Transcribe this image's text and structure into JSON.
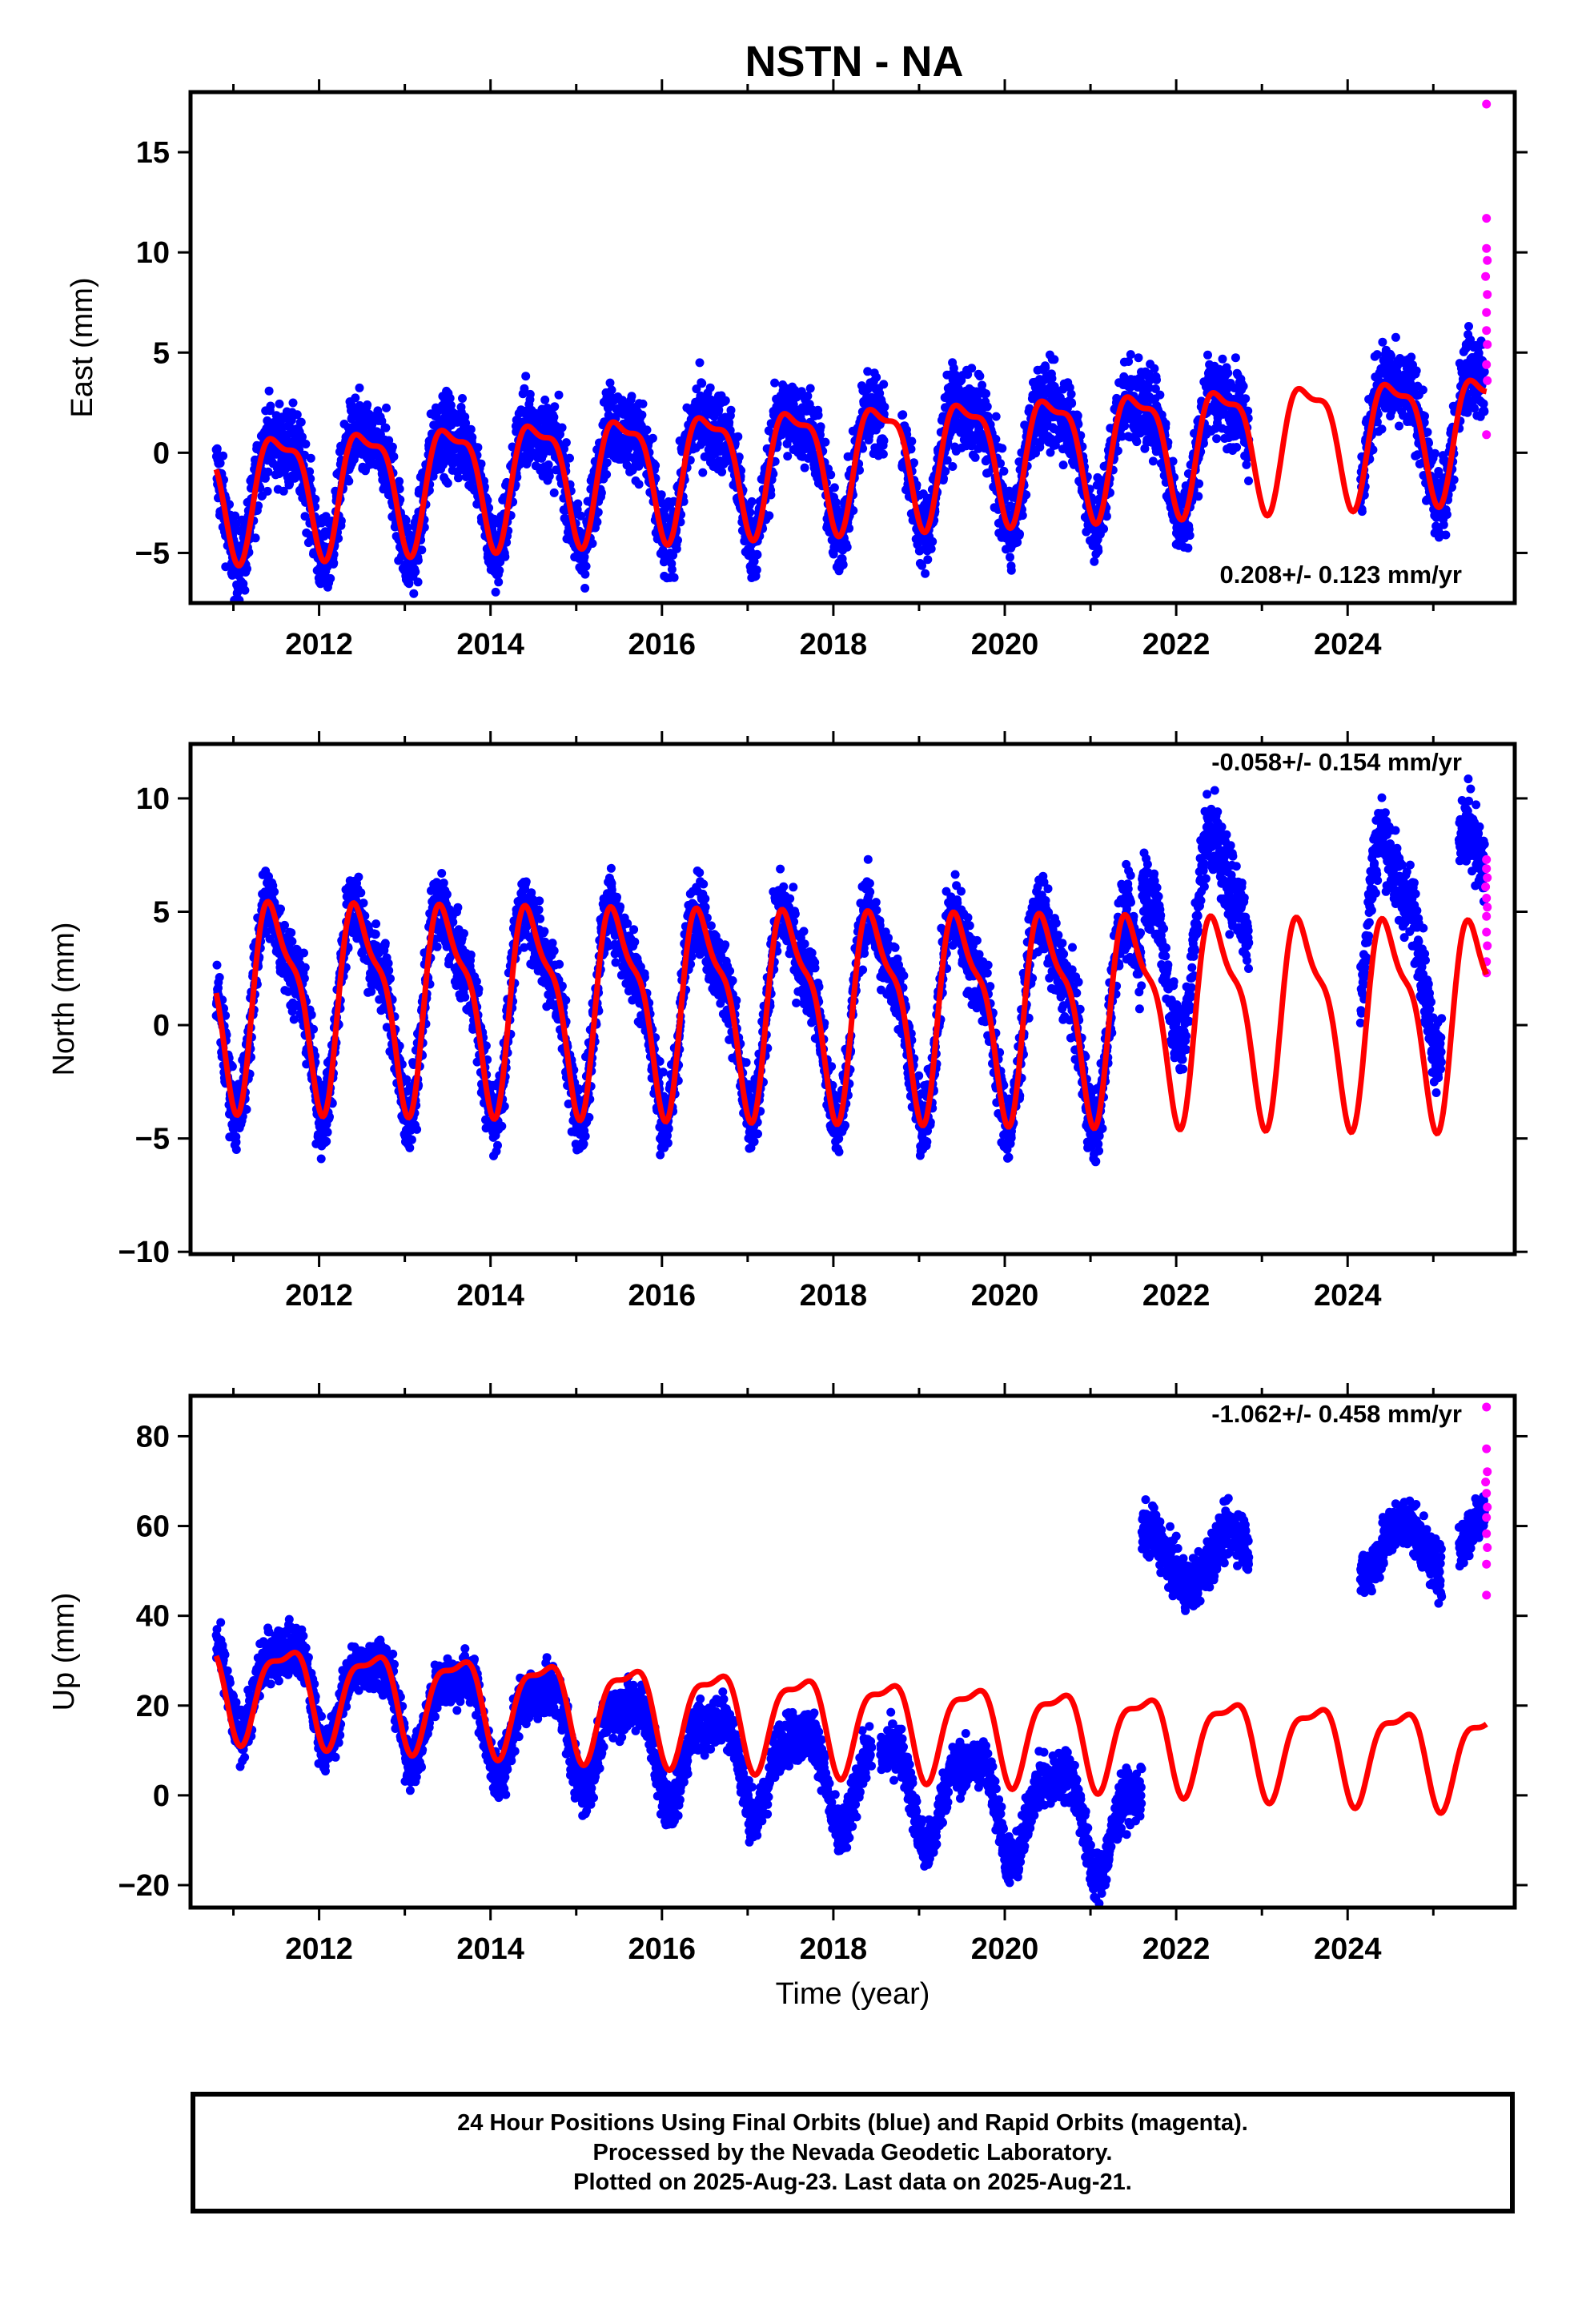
{
  "chart_data": {
    "title": "NSTN - NA",
    "type": "scatter",
    "xlabel": "Time (year)",
    "xlim": [
      2010.5,
      2025.95
    ],
    "x_ticks": [
      "2012",
      "2014",
      "2016",
      "2018",
      "2020",
      "2022",
      "2024"
    ],
    "grid": false,
    "colors": {
      "final": "#0000ff",
      "rapid": "#ff00ff",
      "model": "#ff0000"
    },
    "panels": [
      {
        "name": "east",
        "ylabel": "East (mm)",
        "ylim": [
          -7.5,
          18
        ],
        "y_ticks": [
          -5,
          0,
          5,
          10,
          15
        ],
        "y_tick_labels": [
          "−5",
          "0",
          "5",
          "10",
          "15"
        ],
        "rate_label": "0.208+/- 0.123 mm/yr",
        "model": {
          "offset": -0.3,
          "trend": 0.208,
          "amp": 2.9,
          "phase_peak": 0.55,
          "steps": [
            {
              "t": 2022.9,
              "offset": 0.0
            },
            {
              "t": 2024.35,
              "offset": 0.0
            }
          ]
        },
        "final_segments": [
          [
            2010.8,
            2018.6
          ],
          [
            2018.8,
            2022.85
          ],
          [
            2024.15,
            2025.25
          ],
          [
            2025.3,
            2025.6
          ]
        ],
        "final_offsets": [
          0,
          0,
          0.5,
          1.5
        ],
        "noise": 1.4,
        "rapid_points": [
          [
            2025.62,
            17.4
          ],
          [
            2025.62,
            11.7
          ],
          [
            2025.62,
            10.2
          ],
          [
            2025.63,
            9.6
          ],
          [
            2025.61,
            8.8
          ],
          [
            2025.63,
            7.9
          ],
          [
            2025.62,
            7.0
          ],
          [
            2025.62,
            6.1
          ],
          [
            2025.63,
            5.4
          ],
          [
            2025.62,
            4.4
          ],
          [
            2025.63,
            3.6
          ],
          [
            2025.62,
            0.9
          ]
        ]
      },
      {
        "name": "north",
        "ylabel": "North (mm)",
        "ylim": [
          -10.1,
          12.4
        ],
        "y_ticks": [
          -10,
          -5,
          0,
          5,
          10
        ],
        "y_tick_labels": [
          "−10",
          "−5",
          "0",
          "5",
          "10"
        ],
        "rate_label": "-0.058+/- 0.154 mm/yr",
        "model": {
          "offset": 0.9,
          "trend": -0.058,
          "amp": 4.1,
          "phase_peak": 0.5,
          "steps": []
        },
        "final_segments": [
          [
            2010.8,
            2021.6
          ],
          [
            2021.6,
            2022.85
          ],
          [
            2024.15,
            2025.1
          ],
          [
            2025.3,
            2025.6
          ]
        ],
        "final_offsets": [
          0,
          4.5,
          4.5,
          5.5
        ],
        "noise": 1.2,
        "rapid_points": [
          [
            2025.62,
            7.3
          ],
          [
            2025.62,
            6.9
          ],
          [
            2025.63,
            6.5
          ],
          [
            2025.61,
            6.1
          ],
          [
            2025.62,
            5.6
          ],
          [
            2025.63,
            5.2
          ],
          [
            2025.62,
            4.8
          ],
          [
            2025.62,
            4.1
          ],
          [
            2025.63,
            3.5
          ],
          [
            2025.62,
            2.8
          ],
          [
            2025.62,
            2.3
          ]
        ]
      },
      {
        "name": "up",
        "ylabel": "Up (mm)",
        "ylim": [
          -25,
          89
        ],
        "y_ticks": [
          -20,
          0,
          20,
          40,
          60,
          80
        ],
        "y_tick_labels": [
          "−20",
          "0",
          "20",
          "40",
          "60",
          "80"
        ],
        "rate_label": "-1.062+/- 0.458 mm/yr",
        "model": {
          "offset": 17,
          "trend": -1.062,
          "amp": 10,
          "phase_peak": 0.6,
          "steps": []
        },
        "final_segments": [
          [
            2010.8,
            2018.45
          ],
          [
            2018.55,
            2021.6
          ],
          [
            2021.6,
            2022.85
          ],
          [
            2024.15,
            2025.1
          ],
          [
            2025.3,
            2025.6
          ]
        ],
        "final_offsets": [
          -12,
          -12,
          53,
          55,
          58
        ],
        "noise": 4.0,
        "rapid_points": [
          [
            2025.62,
            86.5
          ],
          [
            2025.62,
            77.2
          ],
          [
            2025.63,
            72.1
          ],
          [
            2025.61,
            69.8
          ],
          [
            2025.62,
            67.3
          ],
          [
            2025.63,
            64.2
          ],
          [
            2025.62,
            61.9
          ],
          [
            2025.62,
            58.3
          ],
          [
            2025.63,
            55.2
          ],
          [
            2025.62,
            51.5
          ],
          [
            2025.62,
            44.6
          ]
        ]
      }
    ]
  },
  "footer": {
    "line1": "24 Hour Positions Using Final Orbits (blue) and Rapid Orbits (magenta).",
    "line2": "Processed by the Nevada Geodetic Laboratory.",
    "line3": "Plotted on 2025-Aug-23. Last data on 2025-Aug-21."
  }
}
